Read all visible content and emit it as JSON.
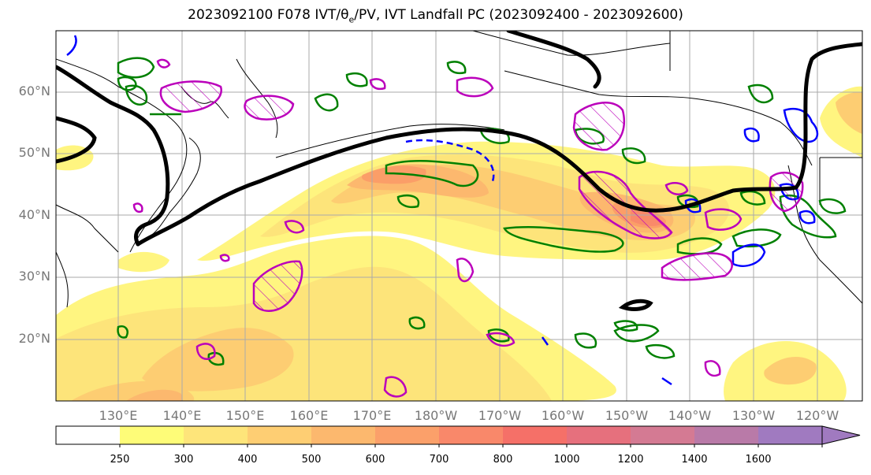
{
  "title": {
    "prefix": "2023092100 F078 IVT/θ",
    "sub": "e",
    "suffix": "/PV, IVT Landfall PC (2023092400 - 2023092600)"
  },
  "map": {
    "lat_labels": [
      "60°N",
      "50°N",
      "40°N",
      "30°N",
      "20°N"
    ],
    "lon_labels": [
      "130°E",
      "140°E",
      "150°E",
      "160°E",
      "170°E",
      "180°W",
      "170°W",
      "160°W",
      "150°W",
      "140°W",
      "130°W",
      "120°W"
    ],
    "fill_colors": {
      "ivt_250": "#fff580",
      "ivt_300": "#fde47a",
      "ivt_400": "#fdcd72",
      "ivt_500": "#fcb86e",
      "ivt_600": "#fb9e68",
      "ivt_700": "#f98a6a"
    },
    "line_colors": {
      "pv": "#000000",
      "theta_e_warm": "#008000",
      "theta_e_cold": "#0000ff",
      "landfall_pc": "#bb00bb"
    }
  },
  "colorbar": {
    "bins": [
      {
        "color": "#ffffff"
      },
      {
        "color": "#fefc78"
      },
      {
        "color": "#fee57a"
      },
      {
        "color": "#fece73"
      },
      {
        "color": "#fcb86e"
      },
      {
        "color": "#fba06a"
      },
      {
        "color": "#f9886a"
      },
      {
        "color": "#f57068"
      },
      {
        "color": "#e6707d"
      },
      {
        "color": "#d47a93"
      },
      {
        "color": "#b97aa8"
      },
      {
        "color": "#a07ac0"
      }
    ],
    "labels": [
      "250",
      "300",
      "400",
      "500",
      "600",
      "700",
      "800",
      "1000",
      "1200",
      "1400",
      "1600"
    ]
  }
}
